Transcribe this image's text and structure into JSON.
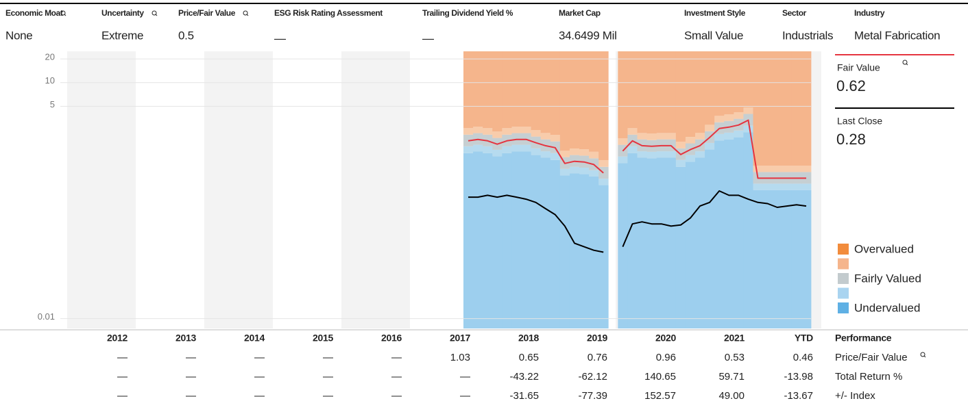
{
  "header": {
    "fields": [
      {
        "label": "Economic Moat",
        "value": "None"
      },
      {
        "label": "Uncertainty",
        "value": "Extreme"
      },
      {
        "label": "Price/Fair Value",
        "value": "0.5"
      },
      {
        "label": "ESG Risk Rating Assessment",
        "value": "—"
      },
      {
        "label": "Trailing Dividend Yield %",
        "value": "—"
      },
      {
        "label": "Market Cap",
        "value": "34.6499 Mil"
      },
      {
        "label": "Investment Style",
        "value": "Small Value"
      },
      {
        "label": "Sector",
        "value": "Industrials"
      },
      {
        "label": "Industry",
        "value": "Metal Fabrication"
      }
    ]
  },
  "chart_data": {
    "type": "valuation-band",
    "log_scale": true,
    "grid": true,
    "ylim": [
      0.0075,
      25
    ],
    "yticks": [
      20,
      10,
      5,
      0.01
    ],
    "fill_above": "#f5b58c",
    "bands": [
      {
        "color": "#9dcfee",
        "values": [
          1.27,
          1.33,
          1.27,
          1.16,
          1.27,
          1.33,
          1.33,
          1.2,
          1.11,
          1.04,
          0.66,
          0.7,
          0.69,
          0.64,
          0.5,
          null,
          0.95,
          1.27,
          1.11,
          1.09,
          1.11,
          1.11,
          0.85,
          0.99,
          1.11,
          1.41,
          1.83,
          1.9,
          2.02,
          2.33,
          0.43,
          0.43,
          0.43,
          0.43,
          0.43,
          0.43
        ]
      },
      {
        "color": "#b6dbef",
        "values": [
          1.55,
          1.62,
          1.55,
          1.4,
          1.55,
          1.62,
          1.62,
          1.46,
          1.34,
          1.27,
          0.8,
          0.85,
          0.83,
          0.77,
          0.6,
          null,
          1.15,
          1.55,
          1.34,
          1.32,
          1.34,
          1.34,
          1.04,
          1.2,
          1.34,
          1.71,
          2.22,
          2.31,
          2.46,
          2.83,
          0.52,
          0.52,
          0.52,
          0.52,
          0.52,
          0.52
        ]
      },
      {
        "color": "#c6cfd2",
        "values": [
          2.18,
          2.28,
          2.18,
          1.98,
          2.18,
          2.28,
          2.28,
          2.06,
          1.9,
          1.79,
          1.13,
          1.2,
          1.18,
          1.09,
          0.85,
          null,
          1.62,
          2.18,
          1.9,
          1.86,
          1.9,
          1.9,
          1.46,
          1.69,
          1.9,
          2.41,
          3.13,
          3.26,
          3.47,
          4.0,
          0.73,
          0.73,
          0.73,
          0.73,
          0.73,
          0.73
        ]
      },
      {
        "color": "#f8ccab",
        "values": [
          2.64,
          2.76,
          2.64,
          2.39,
          2.64,
          2.76,
          2.76,
          2.49,
          2.29,
          2.16,
          1.36,
          1.45,
          1.42,
          1.32,
          1.03,
          null,
          1.96,
          2.64,
          2.29,
          2.25,
          2.29,
          2.29,
          1.77,
          2.04,
          2.29,
          2.91,
          3.78,
          3.94,
          4.19,
          4.83,
          0.88,
          0.88,
          0.88,
          0.88,
          0.88,
          0.88
        ]
      }
    ],
    "series": [
      {
        "name": "Fair Value",
        "color": "#e5343f",
        "values": [
          1.82,
          1.9,
          1.82,
          1.65,
          1.82,
          1.9,
          1.9,
          1.72,
          1.58,
          1.49,
          0.94,
          1.0,
          0.98,
          0.91,
          0.71,
          null,
          1.35,
          1.82,
          1.58,
          1.55,
          1.58,
          1.58,
          1.22,
          1.41,
          1.58,
          2.01,
          2.61,
          2.72,
          2.89,
          3.33,
          0.61,
          0.61,
          0.61,
          0.61,
          0.61,
          0.61
        ]
      },
      {
        "name": "Last Close",
        "color": "#000000",
        "values": [
          0.35,
          0.35,
          0.37,
          0.35,
          0.37,
          0.35,
          0.33,
          0.3,
          0.25,
          0.21,
          0.15,
          0.091,
          0.082,
          0.074,
          0.07,
          null,
          0.082,
          0.16,
          0.17,
          0.16,
          0.16,
          0.15,
          0.155,
          0.19,
          0.27,
          0.3,
          0.42,
          0.37,
          0.37,
          0.33,
          0.3,
          0.29,
          0.26,
          0.27,
          0.28,
          0.27
        ]
      }
    ],
    "side_panel": [
      {
        "label": "Fair Value",
        "value": "0.62",
        "color": "#e5343f"
      },
      {
        "label": "Last Close",
        "value": "0.28",
        "color": "#000000"
      }
    ],
    "legend": [
      {
        "label": "Overvalued",
        "color": "#f28c3c"
      },
      {
        "label": null,
        "color": "#f5b58c"
      },
      {
        "label": "Fairly Valued",
        "color": "#c3cbce"
      },
      {
        "label": null,
        "color": "#a9d4f0"
      },
      {
        "label": "Undervalued",
        "color": "#5fb0e4"
      }
    ]
  },
  "performance": {
    "title": "Performance",
    "years": [
      "2012",
      "2013",
      "2014",
      "2015",
      "2016",
      "2017",
      "2018",
      "2019",
      "2020",
      "2021",
      "YTD"
    ],
    "rows": [
      {
        "label": "Price/Fair Value",
        "values": [
          "—",
          "—",
          "—",
          "—",
          "—",
          "1.03",
          "0.65",
          "0.76",
          "0.96",
          "0.53",
          "0.46"
        ]
      },
      {
        "label": "Total Return %",
        "values": [
          "—",
          "—",
          "—",
          "—",
          "—",
          "—",
          "-43.22",
          "-62.12",
          "140.65",
          "59.71",
          "-13.98"
        ]
      },
      {
        "label": "+/- Index",
        "values": [
          "—",
          "—",
          "—",
          "—",
          "—",
          "—",
          "-31.65",
          "-77.39",
          "152.57",
          "49.00",
          "-13.67"
        ]
      }
    ]
  }
}
